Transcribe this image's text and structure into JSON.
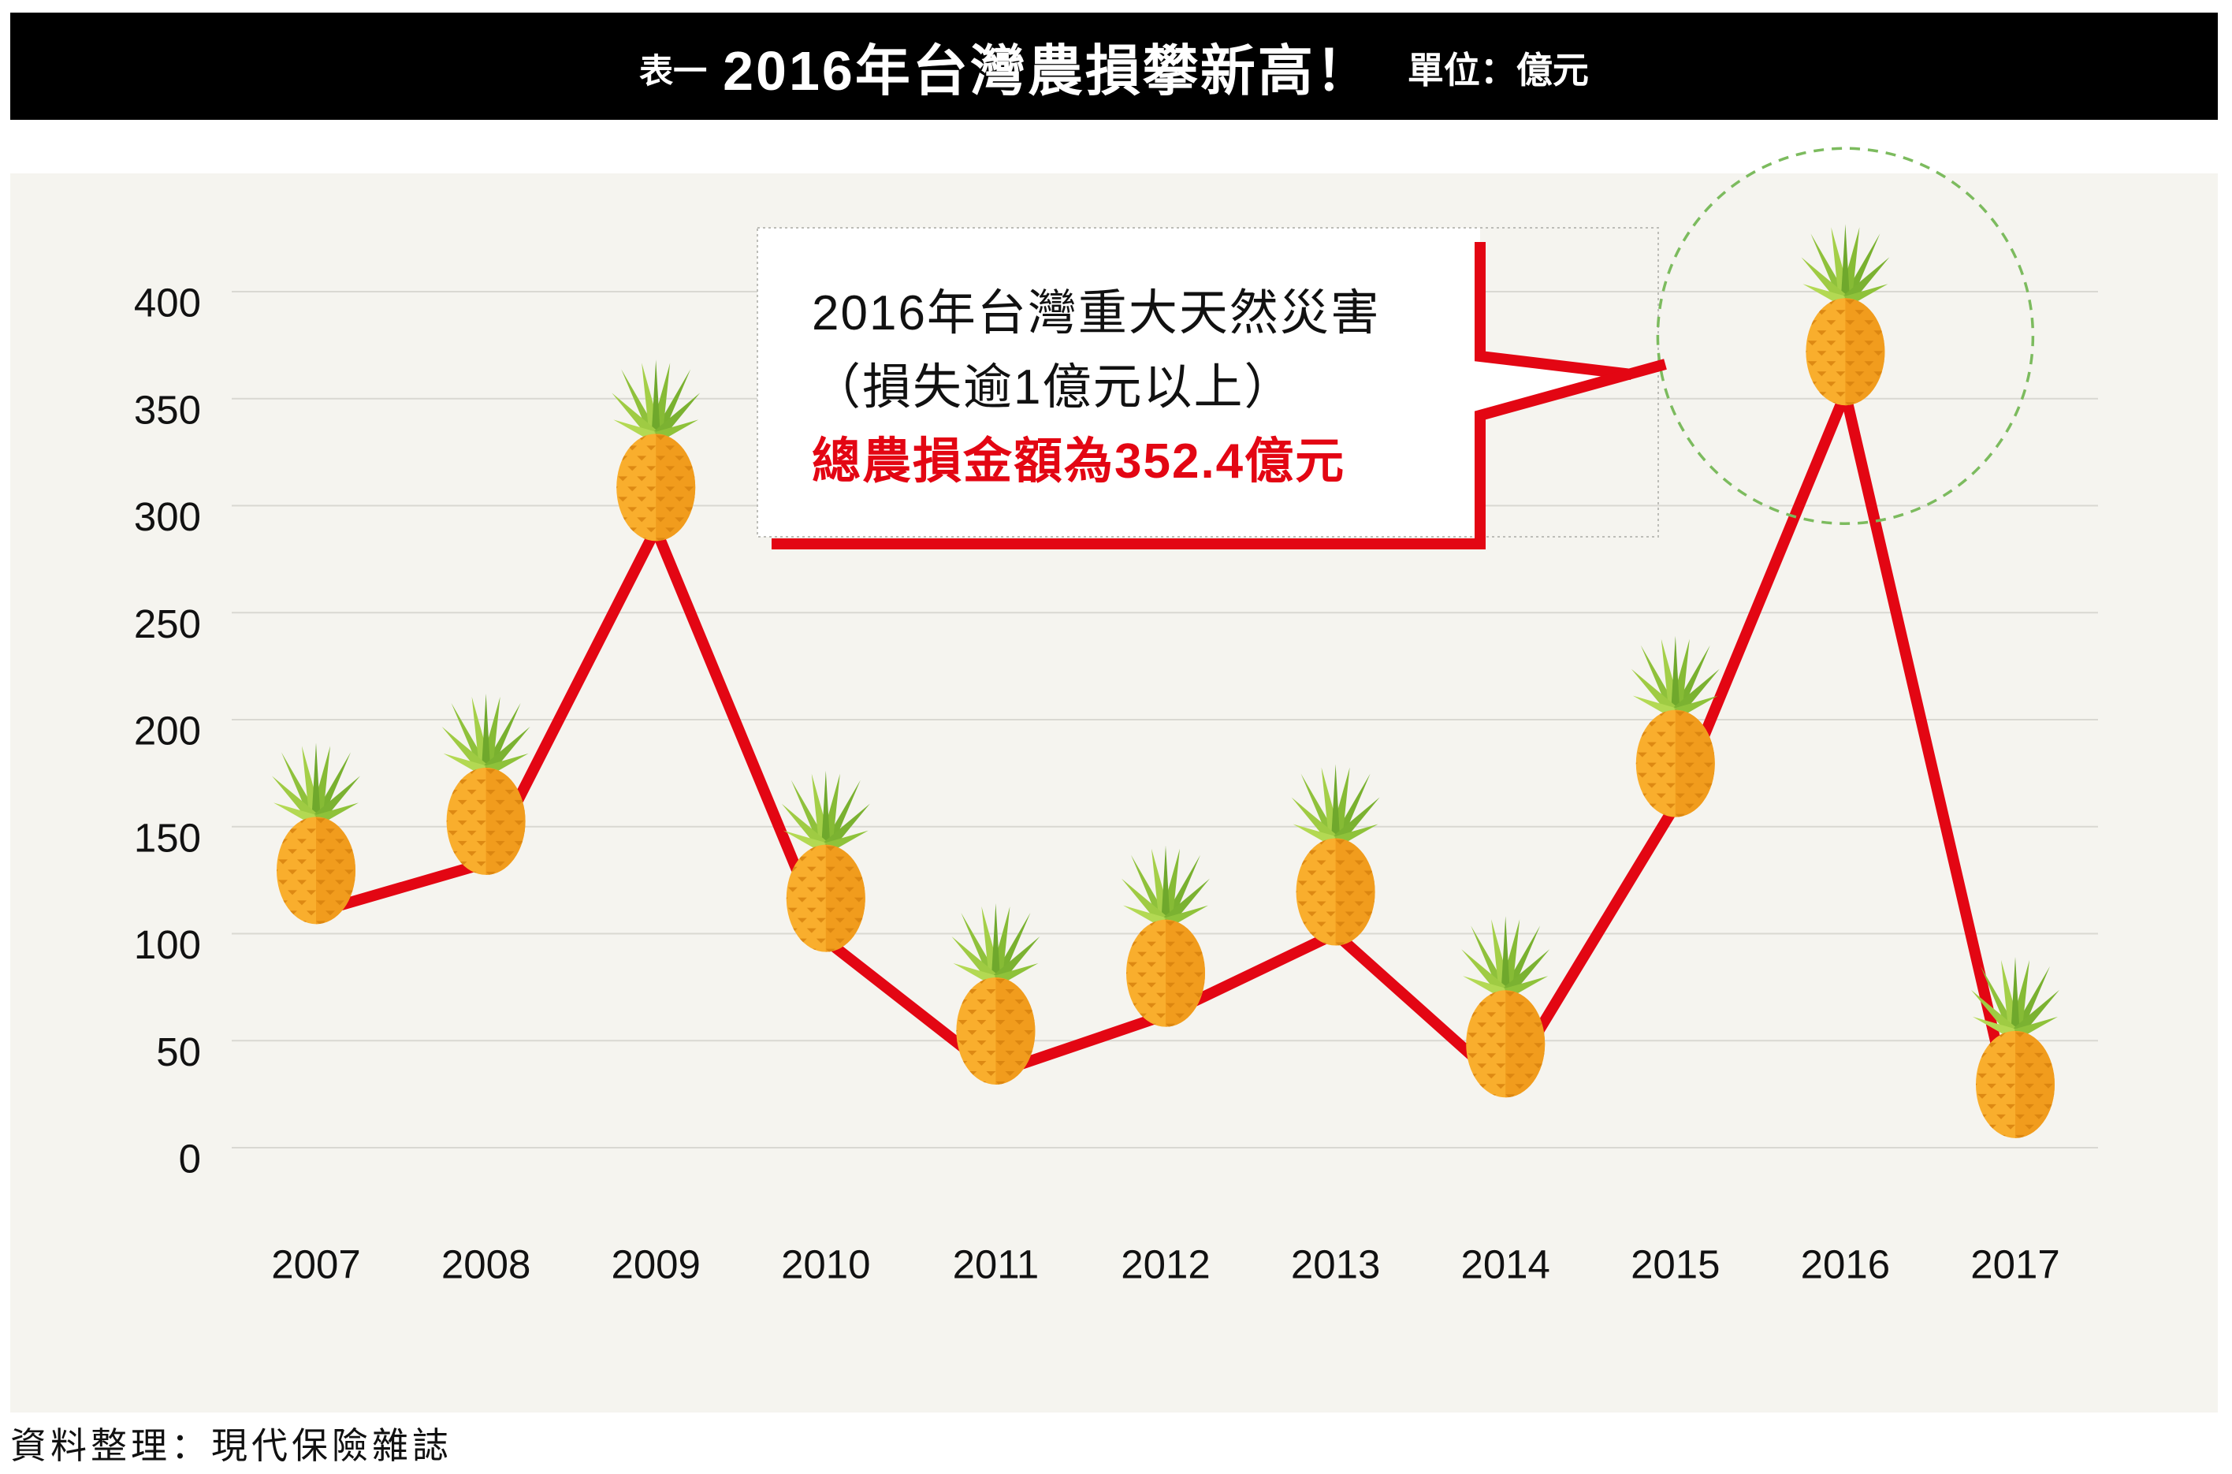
{
  "chart_data": {
    "type": "line",
    "title_prefix": "表一",
    "title": "2016年台灣農損攀新高！",
    "unit": "單位：億元",
    "categories": [
      "2007",
      "2008",
      "2009",
      "2010",
      "2011",
      "2012",
      "2013",
      "2014",
      "2015",
      "2016",
      "2017"
    ],
    "series": [
      {
        "values": [
          110,
          133,
          289,
          97,
          35,
          62,
          100,
          29,
          160,
          352.4,
          10
        ],
        "color": "#e30613",
        "marker": "pineapple-icon"
      }
    ],
    "yticks": [
      400,
      350,
      300,
      250,
      200,
      150,
      100,
      50,
      0
    ],
    "ylim": [
      0,
      400
    ],
    "grid": true,
    "annotation": {
      "lines": [
        "2016年台灣重大天然災害",
        "（損失逾1億元以上）",
        "總農損金額為352.4億元"
      ],
      "highlight_color": "#e30613",
      "circle_color": "#7cbb5e"
    },
    "source": "資料整理：現代保險雜誌"
  },
  "colors": {
    "title_bar": "#000000",
    "chart_background": "#f5f4ef"
  }
}
